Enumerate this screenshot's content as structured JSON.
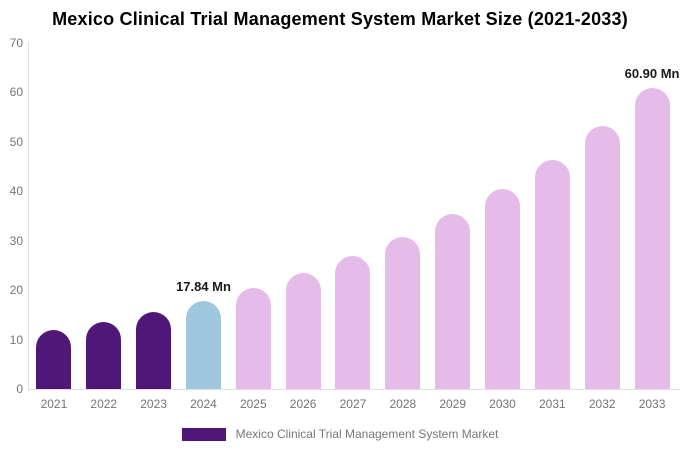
{
  "title": "Mexico Clinical Trial Management System Market Size (2021-2033)",
  "chart_data": {
    "type": "bar",
    "title": "Mexico Clinical Trial Management System Market Size (2021-2033)",
    "categories": [
      "2021",
      "2022",
      "2023",
      "2024",
      "2025",
      "2026",
      "2027",
      "2028",
      "2029",
      "2030",
      "2031",
      "2032",
      "2033"
    ],
    "values": [
      11.85,
      13.58,
      15.57,
      17.84,
      20.45,
      23.44,
      26.87,
      30.8,
      35.31,
      40.47,
      46.39,
      53.17,
      60.9
    ],
    "value_labels": {
      "2024": "17.84 Mn",
      "2033": "60.90 Mn"
    },
    "bar_colors": [
      "#4F1777",
      "#4F1777",
      "#4F1777",
      "#9FC8DE",
      "#E5BBE9",
      "#E5BBE9",
      "#E5BBE9",
      "#E5BBE9",
      "#E5BBE9",
      "#E5BBE9",
      "#E5BBE9",
      "#E5BBE9",
      "#E5BBE9"
    ],
    "color_roles": {
      "historical": "#4F1777",
      "base_year": "#9FC8DE",
      "forecast": "#E5BBE9"
    },
    "xlabel": "",
    "ylabel": "",
    "ylim": [
      0,
      70
    ],
    "yticks": [
      0,
      10,
      20,
      30,
      40,
      50,
      60,
      70
    ],
    "grid": false,
    "legend": {
      "position": "bottom",
      "label": "Mexico Clinical Trial Management System Market",
      "swatch_color": "#4F1777"
    },
    "axis_color": "#e0e0e0",
    "tick_text_color": "#757575",
    "value_label_color": "#1a1a1a",
    "unit": "Mn"
  }
}
